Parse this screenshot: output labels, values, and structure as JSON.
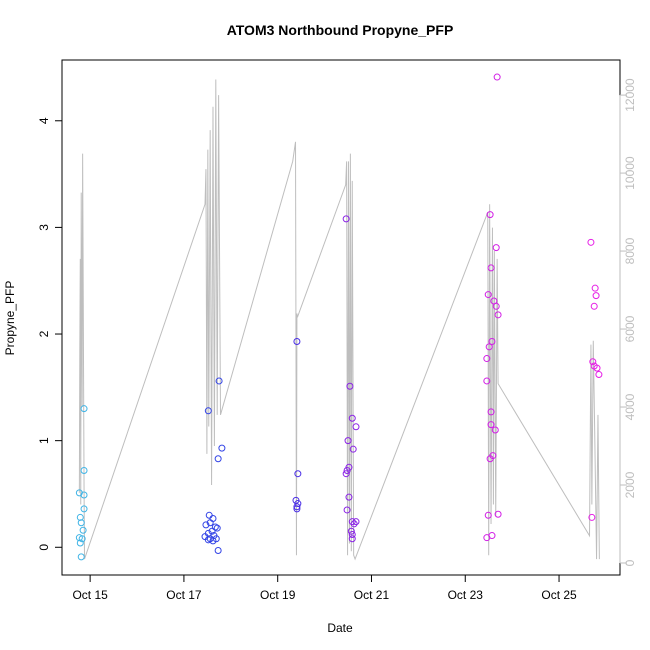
{
  "chart_data": {
    "type": "scatter",
    "title": "ATOM3 Northbound Propyne_PFP",
    "x_label": "Date",
    "y_label": "Propyne_PFP",
    "xlim": [
      14.4,
      26.3
    ],
    "xticks": [
      {
        "value": 15,
        "label": "Oct 15"
      },
      {
        "value": 17,
        "label": "Oct 17"
      },
      {
        "value": 19,
        "label": "Oct 19"
      },
      {
        "value": 21,
        "label": "Oct 21"
      },
      {
        "value": 23,
        "label": "Oct 23"
      },
      {
        "value": 25,
        "label": "Oct 25"
      }
    ],
    "ylim": [
      -0.26,
      4.57
    ],
    "yticks": [
      0,
      1,
      2,
      3,
      4
    ],
    "y2lim": [
      -308,
      12900
    ],
    "y2ticks": [
      0,
      2000,
      4000,
      6000,
      8000,
      10000,
      12000
    ],
    "series": [
      {
        "color": "#3fb4e6",
        "x": [
          14.77,
          14.87,
          14.87,
          14.87,
          14.87,
          14.79,
          14.81,
          14.85,
          14.77,
          14.83,
          14.79,
          14.81
        ],
        "values": [
          0.51,
          1.3,
          0.72,
          0.49,
          0.36,
          0.28,
          0.23,
          0.16,
          0.09,
          0.08,
          0.04,
          -0.09
        ]
      },
      {
        "color": "#3344e6",
        "x": [
          17.52,
          17.75,
          17.81,
          17.73,
          17.54,
          17.62,
          17.56,
          17.47,
          17.67,
          17.71,
          17.6,
          17.52,
          17.64,
          17.45,
          17.56,
          17.69,
          17.52,
          17.62,
          17.73
        ],
        "values": [
          1.28,
          1.56,
          0.93,
          0.83,
          0.3,
          0.27,
          0.23,
          0.21,
          0.19,
          0.18,
          0.15,
          0.13,
          0.11,
          0.1,
          0.08,
          0.08,
          0.07,
          0.06,
          -0.03
        ]
      },
      {
        "color": "#4a2ee6",
        "x": [
          19.41,
          19.43,
          19.39,
          19.43,
          19.41,
          19.41
        ],
        "values": [
          1.93,
          0.69,
          0.44,
          0.41,
          0.38,
          0.36
        ]
      },
      {
        "color": "#8a22e6",
        "x": [
          20.46,
          20.54,
          20.59,
          20.67,
          20.5,
          20.61,
          20.52,
          20.48,
          20.46,
          20.52,
          20.48,
          20.59,
          20.67,
          20.63,
          20.57,
          20.59,
          20.59
        ],
        "values": [
          3.08,
          1.51,
          1.21,
          1.13,
          1.0,
          0.92,
          0.75,
          0.72,
          0.69,
          0.47,
          0.35,
          0.24,
          0.24,
          0.22,
          0.15,
          0.12,
          0.08
        ]
      },
      {
        "color": "#d21ee6",
        "x": [
          23.68,
          23.53,
          23.66,
          23.55,
          23.49,
          23.61,
          23.66,
          23.7,
          23.51,
          23.57,
          23.46,
          23.46,
          23.55,
          23.55,
          23.64,
          23.53,
          23.59,
          23.49,
          23.7,
          23.57,
          23.46
        ],
        "values": [
          4.41,
          3.12,
          2.81,
          2.62,
          2.37,
          2.31,
          2.26,
          2.18,
          1.88,
          1.93,
          1.77,
          1.56,
          1.27,
          1.15,
          1.1,
          0.83,
          0.86,
          0.3,
          0.31,
          0.11,
          0.09
        ]
      },
      {
        "color": "#e61ee6",
        "x": [
          25.68,
          25.77,
          25.79,
          25.75,
          25.72,
          25.75,
          25.81,
          25.85,
          25.7
        ],
        "values": [
          2.86,
          2.43,
          2.36,
          2.26,
          1.74,
          1.7,
          1.68,
          1.62,
          0.28
        ]
      },
      {
        "type": "line",
        "axis": "y2",
        "color": "#bebebe",
        "x": [
          14.77,
          14.78,
          14.79,
          14.8,
          14.81,
          14.83,
          14.84,
          14.87,
          14.88,
          17.45,
          17.47,
          17.49,
          17.51,
          17.53,
          17.56,
          17.59,
          17.62,
          17.65,
          17.68,
          17.71,
          17.74,
          17.78,
          19.32,
          19.38,
          19.4,
          19.41,
          19.42,
          20.45,
          20.47,
          20.49,
          20.51,
          20.53,
          20.55,
          20.57,
          20.59,
          20.62,
          20.65,
          23.45,
          23.48,
          23.5,
          23.52,
          23.55,
          23.58,
          23.6,
          23.62,
          23.65,
          23.68,
          23.7,
          25.65,
          25.68,
          25.7,
          25.73,
          25.76,
          25.8,
          25.83,
          25.86
        ],
        "values": [
          1800,
          5500,
          7800,
          1500,
          9500,
          4000,
          10500,
          2000,
          100,
          9200,
          10100,
          2800,
          10600,
          3500,
          11100,
          2000,
          11700,
          3000,
          12400,
          3800,
          12000,
          3800,
          10300,
          10800,
          200,
          6400,
          6300,
          9700,
          10300,
          200,
          10300,
          500,
          10500,
          300,
          9800,
          200,
          100,
          8900,
          9000,
          200,
          9200,
          1000,
          8600,
          1500,
          8000,
          1200,
          7800,
          4600,
          700,
          5600,
          1500,
          5700,
          3400,
          100,
          3800,
          100
        ]
      }
    ]
  }
}
